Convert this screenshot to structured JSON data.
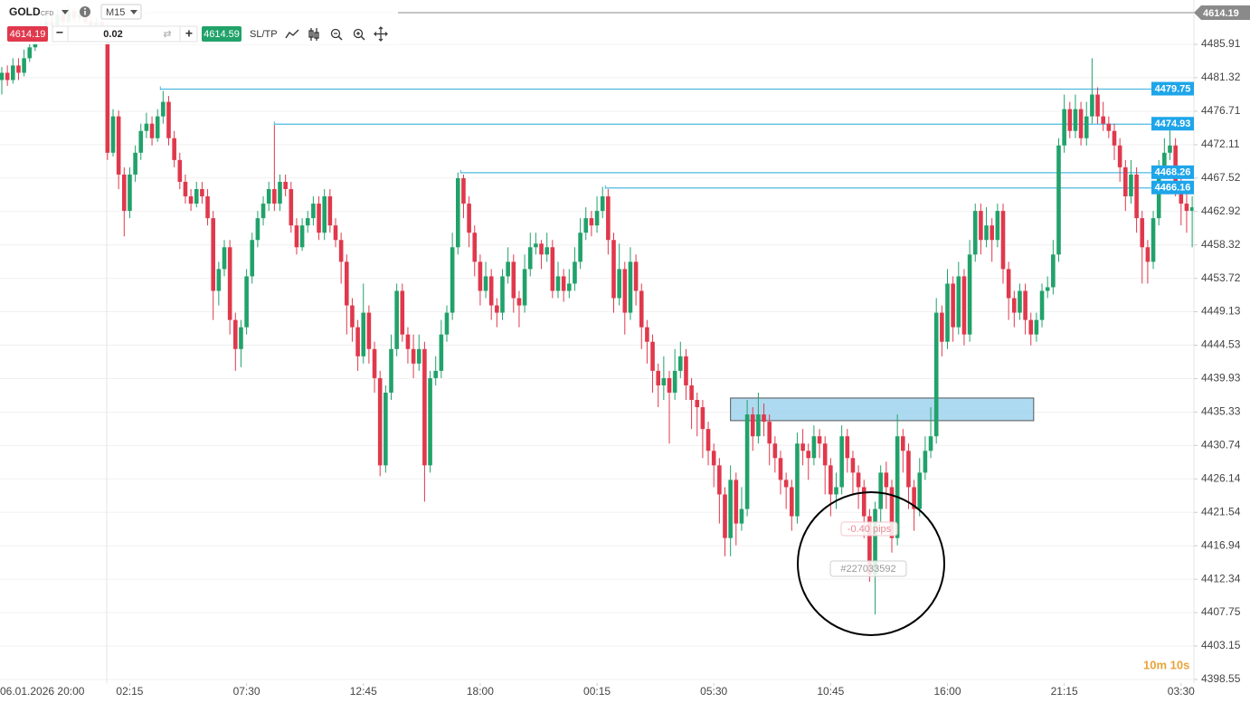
{
  "toolbar": {
    "symbol": "GOLD",
    "symbol_type": "CFD",
    "timeframe": "M15",
    "sell_price": "4614.19",
    "volume": "0.02",
    "buy_price": "4614.59",
    "sl_tp": "SL/TP"
  },
  "countdown": "10m 10s",
  "chart_data": {
    "type": "candlestick",
    "up_color": "#21a26a",
    "down_color": "#e0384c",
    "grid": true,
    "ylim": [
      4398.05,
      4492.01
    ],
    "yticks": [
      4485.91,
      4481.32,
      4476.71,
      4472.11,
      4467.52,
      4462.92,
      4458.32,
      4453.72,
      4449.13,
      4444.53,
      4439.93,
      4435.33,
      4430.74,
      4426.14,
      4421.54,
      4416.94,
      4412.34,
      4407.75,
      4403.15,
      4398.55
    ],
    "xticks": [
      {
        "value": -2,
        "label": "06.01.2026 20:00"
      },
      {
        "value": 23,
        "label": "02:15"
      },
      {
        "value": 44,
        "label": "07:30"
      },
      {
        "value": 65,
        "label": "12:45"
      },
      {
        "value": 86,
        "label": "18:00"
      },
      {
        "value": 107,
        "label": "00:15"
      },
      {
        "value": 128,
        "label": "05:30"
      },
      {
        "value": 149,
        "label": "10:45"
      },
      {
        "value": 170,
        "label": "16:00"
      },
      {
        "value": 191,
        "label": "21:15"
      },
      {
        "value": 212,
        "label": "03:30"
      }
    ],
    "price_lines": [
      {
        "value": 4479.75,
        "start": 28.5
      },
      {
        "value": 4474.93,
        "start": 49
      },
      {
        "value": 4468.26,
        "start": 82.5
      },
      {
        "value": 4466.16,
        "start": 108.5
      }
    ],
    "line_color": "#4fb8e0",
    "label_color": "#1ea5ea",
    "zone": {
      "top": 4437.26,
      "bottom": 4434.15,
      "start": 131,
      "end": 185.5,
      "color": "#9fd4ef"
    },
    "annotations": {
      "pips": "-0.40 pips",
      "order": "#227033592"
    },
    "ohlc": [
      [
        4481,
        4482.8,
        4479,
        4482
      ],
      [
        4482,
        4483,
        4480.2,
        4481
      ],
      [
        4481,
        4484,
        4480.5,
        4483
      ],
      [
        4483,
        4484,
        4481,
        4482
      ],
      [
        4482,
        4485.2,
        4481.5,
        4484
      ],
      [
        4484,
        4486.5,
        4483.5,
        4485.5
      ],
      [
        4485.5,
        4487.8,
        4485,
        4487
      ],
      [
        4487,
        4489,
        4486.5,
        4488
      ],
      [
        4488,
        4490,
        4487.5,
        4489
      ],
      [
        4489,
        4489.8,
        4487.8,
        4488.5
      ],
      [
        4488.5,
        4491,
        4488,
        4490
      ],
      [
        4490,
        4490.8,
        4488.5,
        4489
      ],
      [
        4489,
        4491.2,
        4488.6,
        4490.5
      ],
      [
        4490.5,
        4491,
        4489,
        4489.5
      ],
      [
        4489.5,
        4490.8,
        4489,
        4490
      ],
      [
        4490,
        4490.6,
        4488.4,
        4489
      ],
      [
        4489,
        4489.8,
        4488,
        4488.5
      ],
      [
        4488.5,
        4489.6,
        4487.5,
        4489
      ],
      [
        4489,
        4490,
        4486.5,
        4488
      ],
      [
        4488,
        4489,
        4470,
        4471
      ],
      [
        4471,
        4477,
        4470.5,
        4476
      ],
      [
        4476,
        4476.8,
        4466,
        4468
      ],
      [
        4468,
        4469,
        4459.5,
        4463
      ],
      [
        4463,
        4469,
        4462,
        4468
      ],
      [
        4468,
        4472,
        4467,
        4471
      ],
      [
        4471,
        4475,
        4470,
        4474
      ],
      [
        4474,
        4476.5,
        4473,
        4475
      ],
      [
        4475,
        4476,
        4472,
        4473
      ],
      [
        4473,
        4477,
        4472.5,
        4476
      ],
      [
        4476,
        4479.5,
        4475,
        4478
      ],
      [
        4478,
        4478.8,
        4472,
        4473
      ],
      [
        4473,
        4474,
        4469,
        4470
      ],
      [
        4470,
        4471,
        4466,
        4467
      ],
      [
        4467,
        4468,
        4464,
        4465
      ],
      [
        4465,
        4466,
        4463,
        4464
      ],
      [
        4464,
        4467,
        4463.5,
        4466
      ],
      [
        4466,
        4467,
        4464,
        4465
      ],
      [
        4465,
        4466,
        4461,
        4462
      ],
      [
        4462,
        4463,
        4448,
        4452
      ],
      [
        4452,
        4456,
        4450,
        4455
      ],
      [
        4455,
        4459,
        4454,
        4458
      ],
      [
        4458,
        4459,
        4446,
        4448
      ],
      [
        4448,
        4449,
        4441,
        4444
      ],
      [
        4444,
        4448,
        4441.5,
        4447
      ],
      [
        4447,
        4455,
        4446,
        4454
      ],
      [
        4454,
        4460,
        4453,
        4459
      ],
      [
        4459,
        4463,
        4458,
        4462
      ],
      [
        4462,
        4465,
        4461,
        4464
      ],
      [
        4464,
        4467,
        4463,
        4466
      ],
      [
        4466,
        4474.8,
        4463,
        4464
      ],
      [
        4464,
        4468,
        4463,
        4467
      ],
      [
        4467,
        4468,
        4465,
        4466
      ],
      [
        4466,
        4467,
        4460,
        4461
      ],
      [
        4461,
        4462,
        4457,
        4458
      ],
      [
        4458,
        4462,
        4457.5,
        4461
      ],
      [
        4461,
        4463,
        4460,
        4462
      ],
      [
        4462,
        4465,
        4461,
        4464
      ],
      [
        4464,
        4465,
        4459,
        4460
      ],
      [
        4460,
        4466,
        4459,
        4465
      ],
      [
        4465,
        4466,
        4460,
        4461
      ],
      [
        4461,
        4462,
        4458,
        4459
      ],
      [
        4459,
        4460,
        4453,
        4456
      ],
      [
        4456,
        4457,
        4446,
        4450
      ],
      [
        4450,
        4451,
        4445,
        4447
      ],
      [
        4447,
        4448,
        4441,
        4443
      ],
      [
        4443,
        4453,
        4442,
        4449
      ],
      [
        4449,
        4450,
        4442,
        4444
      ],
      [
        4444,
        4445,
        4438,
        4440
      ],
      [
        4440,
        4441,
        4426.5,
        4428
      ],
      [
        4428,
        4439,
        4427,
        4438
      ],
      [
        4438,
        4446,
        4437,
        4444
      ],
      [
        4444,
        4453,
        4443,
        4452
      ],
      [
        4452,
        4453,
        4445,
        4446
      ],
      [
        4446,
        4447,
        4442,
        4444
      ],
      [
        4444,
        4446,
        4440,
        4442
      ],
      [
        4442,
        4446,
        4441,
        4444
      ],
      [
        4444,
        4445,
        4423,
        4428
      ],
      [
        4428,
        4441,
        4427,
        4440
      ],
      [
        4440,
        4443,
        4439,
        4441
      ],
      [
        4441,
        4448,
        4440,
        4446
      ],
      [
        4446,
        4450,
        4445,
        4449
      ],
      [
        4449,
        4460,
        4448,
        4458
      ],
      [
        4458,
        4468.3,
        4457,
        4467.5
      ],
      [
        4467.5,
        4468,
        4462,
        4464
      ],
      [
        4464,
        4465,
        4458,
        4460
      ],
      [
        4460,
        4461,
        4454,
        4456
      ],
      [
        4456,
        4457,
        4450,
        4452
      ],
      [
        4452,
        4456,
        4451,
        4454
      ],
      [
        4454,
        4455,
        4448,
        4450
      ],
      [
        4450,
        4451,
        4447,
        4449
      ],
      [
        4449,
        4455,
        4448,
        4454
      ],
      [
        4454,
        4458,
        4453,
        4456
      ],
      [
        4456,
        4457,
        4449,
        4451
      ],
      [
        4451,
        4452,
        4447,
        4450
      ],
      [
        4450,
        4457,
        4449,
        4455
      ],
      [
        4455,
        4460,
        4454,
        4458
      ],
      [
        4458,
        4460,
        4457,
        4458.5
      ],
      [
        4458.5,
        4459,
        4455,
        4457
      ],
      [
        4457,
        4460,
        4456,
        4458
      ],
      [
        4458,
        4459,
        4451,
        4452
      ],
      [
        4452,
        4456,
        4451,
        4454
      ],
      [
        4454,
        4455,
        4450.5,
        4452
      ],
      [
        4452,
        4455,
        4451,
        4453
      ],
      [
        4453,
        4458,
        4452,
        4456
      ],
      [
        4456,
        4462,
        4455,
        4460
      ],
      [
        4460,
        4463.5,
        4459,
        4462
      ],
      [
        4462,
        4463,
        4459.5,
        4461
      ],
      [
        4461,
        4465,
        4460,
        4463
      ],
      [
        4463,
        4466.3,
        4462,
        4465
      ],
      [
        4465,
        4466,
        4457,
        4459
      ],
      [
        4459,
        4460,
        4449,
        4451
      ],
      [
        4451,
        4458.5,
        4450,
        4455
      ],
      [
        4455,
        4456,
        4446,
        4449
      ],
      [
        4449,
        4458,
        4448,
        4456
      ],
      [
        4456,
        4457,
        4450,
        4452
      ],
      [
        4452,
        4453,
        4444,
        4447
      ],
      [
        4447,
        4448,
        4442,
        4445
      ],
      [
        4445,
        4446,
        4438,
        4441
      ],
      [
        4441,
        4442,
        4436,
        4439
      ],
      [
        4439,
        4443,
        4437,
        4440
      ],
      [
        4440,
        4441,
        4431,
        4438
      ],
      [
        4438,
        4444,
        4437,
        4441
      ],
      [
        4441,
        4445,
        4440,
        4443
      ],
      [
        4443,
        4444,
        4437,
        4439
      ],
      [
        4439,
        4440,
        4433,
        4437
      ],
      [
        4437,
        4438,
        4432,
        4436
      ],
      [
        4436,
        4437,
        4429,
        4433
      ],
      [
        4433,
        4434,
        4428,
        4430
      ],
      [
        4430,
        4431,
        4425,
        4428
      ],
      [
        4428,
        4429,
        4420,
        4424
      ],
      [
        4424,
        4425,
        4415.5,
        4418
      ],
      [
        4418,
        4428,
        4415.5,
        4426
      ],
      [
        4426,
        4427,
        4417,
        4420
      ],
      [
        4420,
        4425,
        4419,
        4422
      ],
      [
        4422,
        4437,
        4421,
        4435
      ],
      [
        4435,
        4436,
        4430,
        4432
      ],
      [
        4432,
        4438,
        4431,
        4435
      ],
      [
        4435,
        4436.5,
        4432,
        4434
      ],
      [
        4434,
        4435,
        4428,
        4431
      ],
      [
        4431,
        4432,
        4427,
        4429
      ],
      [
        4429,
        4430,
        4424,
        4426
      ],
      [
        4426,
        4427,
        4422,
        4425
      ],
      [
        4425,
        4426,
        4419,
        4421
      ],
      [
        4421,
        4432.5,
        4420,
        4431
      ],
      [
        4431,
        4433,
        4428,
        4430
      ],
      [
        4430,
        4431,
        4426,
        4429
      ],
      [
        4429,
        4433.5,
        4428,
        4432
      ],
      [
        4432,
        4433,
        4429,
        4431
      ],
      [
        4431,
        4432,
        4424,
        4428
      ],
      [
        4428,
        4429,
        4421,
        4424
      ],
      [
        4424,
        4427,
        4422,
        4425
      ],
      [
        4425,
        4433.5,
        4424,
        4432
      ],
      [
        4432,
        4433,
        4427,
        4429
      ],
      [
        4429,
        4430,
        4424,
        4427
      ],
      [
        4427,
        4428,
        4422,
        4425
      ],
      [
        4425,
        4426,
        4418,
        4421
      ],
      [
        4421,
        4422,
        4412,
        4413
      ],
      [
        4413,
        4423,
        4407.5,
        4422
      ],
      [
        4422,
        4428,
        4420,
        4427
      ],
      [
        4427,
        4428.5,
        4422,
        4425
      ],
      [
        4425,
        4426,
        4416,
        4418
      ],
      [
        4418,
        4435,
        4417,
        4432
      ],
      [
        4432,
        4433,
        4427,
        4430
      ],
      [
        4430,
        4431,
        4422,
        4425
      ],
      [
        4425,
        4426,
        4419,
        4422
      ],
      [
        4422,
        4429,
        4421,
        4427
      ],
      [
        4427,
        4432,
        4426,
        4430
      ],
      [
        4430,
        4436,
        4429,
        4432
      ],
      [
        4432,
        4451,
        4431,
        4449
      ],
      [
        4449,
        4450,
        4443,
        4445
      ],
      [
        4445,
        4455,
        4444,
        4453
      ],
      [
        4453,
        4454,
        4445,
        4447
      ],
      [
        4447,
        4456,
        4446,
        4454
      ],
      [
        4454,
        4455,
        4444.5,
        4446
      ],
      [
        4446,
        4459,
        4445,
        4457
      ],
      [
        4457,
        4464,
        4456,
        4463
      ],
      [
        4463,
        4464,
        4457,
        4459
      ],
      [
        4459,
        4463.5,
        4458,
        4461
      ],
      [
        4461,
        4462,
        4456,
        4459
      ],
      [
        4459,
        4464,
        4458,
        4463
      ],
      [
        4463,
        4464,
        4453,
        4455
      ],
      [
        4455,
        4456,
        4448,
        4451
      ],
      [
        4451,
        4452,
        4447,
        4449
      ],
      [
        4449,
        4453,
        4448,
        4452
      ],
      [
        4452,
        4453,
        4446,
        4448
      ],
      [
        4448,
        4449,
        4444.5,
        4446
      ],
      [
        4446,
        4449,
        4445,
        4448
      ],
      [
        4448,
        4453,
        4447,
        4452
      ],
      [
        4452,
        4454,
        4451,
        4452.5
      ],
      [
        4452.5,
        4459,
        4451.5,
        4457
      ],
      [
        4457,
        4473,
        4456,
        4472
      ],
      [
        4472,
        4479,
        4471,
        4477
      ],
      [
        4477,
        4478,
        4473,
        4474
      ],
      [
        4474,
        4479,
        4473,
        4477
      ],
      [
        4477,
        4478,
        4472,
        4473
      ],
      [
        4473,
        4478,
        4472,
        4476
      ],
      [
        4476,
        4484,
        4475,
        4479
      ],
      [
        4479,
        4480,
        4475,
        4476
      ],
      [
        4476,
        4478,
        4474,
        4475
      ],
      [
        4475,
        4476,
        4473,
        4474
      ],
      [
        4474,
        4475,
        4470,
        4472
      ],
      [
        4472,
        4473,
        4467,
        4469
      ],
      [
        4469,
        4470,
        4463,
        4465
      ],
      [
        4465,
        4470,
        4464,
        4468
      ],
      [
        4468,
        4469,
        4460,
        4462
      ],
      [
        4462,
        4463,
        4453,
        4458
      ],
      [
        4458,
        4459,
        4453,
        4456
      ],
      [
        4456,
        4463,
        4455,
        4462
      ],
      [
        4462,
        4470,
        4461,
        4469
      ],
      [
        4469,
        4473,
        4468,
        4471
      ],
      [
        4471,
        4475,
        4470,
        4472
      ],
      [
        4472,
        4473,
        4465,
        4467
      ],
      [
        4467,
        4468,
        4461,
        4464
      ],
      [
        4464,
        4466,
        4460,
        4463
      ],
      [
        4463,
        4465,
        4458,
        4463.5
      ]
    ]
  }
}
